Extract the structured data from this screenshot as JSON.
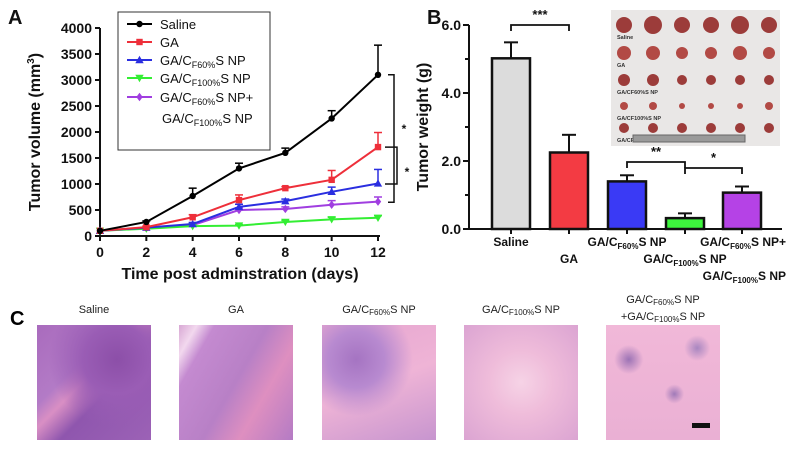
{
  "panels": {
    "a": "A",
    "b": "B",
    "c": "C"
  },
  "colors": {
    "saline": "#000000",
    "ga": "#ee2f3a",
    "f60": "#2a2ee0",
    "f100": "#33ee33",
    "combo": "#a03ee0",
    "saline_bar": "#dcdcdc",
    "ga_bar": "#f33b43",
    "f60_bar": "#3a3af5",
    "f100_bar": "#3df53d",
    "combo_bar": "#b542e6"
  },
  "chart_data": [
    {
      "type": "line",
      "title": "",
      "xlabel": "Time post adminstration (days)",
      "ylabel_main": "Tumor volume (mm",
      "ylabel_sup": "3",
      "ylabel_close": ")",
      "x": [
        0,
        2,
        4,
        6,
        8,
        10,
        12
      ],
      "xlim": [
        0,
        12
      ],
      "ylim": [
        0,
        4000
      ],
      "xticks": [
        "0",
        "2",
        "4",
        "6",
        "8",
        "10",
        "12"
      ],
      "yticks": [
        "0",
        "500",
        "1000",
        "1500",
        "2000",
        "2500",
        "3000",
        "3500",
        "4000"
      ],
      "legend_position": "top-left",
      "series": [
        {
          "name": "Saline",
          "label": {
            "base": "Saline",
            "sub": "",
            "tail": ""
          },
          "color_key": "saline",
          "marker": "circle",
          "values": [
            100,
            270,
            770,
            1300,
            1600,
            2260,
            3100
          ],
          "errors": [
            0,
            20,
            150,
            100,
            90,
            150,
            570
          ]
        },
        {
          "name": "GA",
          "label": {
            "base": "GA",
            "sub": "",
            "tail": ""
          },
          "color_key": "ga",
          "marker": "square",
          "values": [
            100,
            170,
            360,
            690,
            920,
            1080,
            1710
          ],
          "errors": [
            0,
            20,
            50,
            100,
            30,
            180,
            280
          ]
        },
        {
          "name": "GA/CF60%S NP",
          "label": {
            "base": "GA/C",
            "sub": "F60%",
            "tail": "S NP"
          },
          "color_key": "f60",
          "marker": "triangle-up",
          "values": [
            100,
            160,
            230,
            560,
            670,
            850,
            1010
          ],
          "errors": [
            0,
            15,
            30,
            50,
            40,
            90,
            270
          ]
        },
        {
          "name": "GA/CF100%S NP",
          "label": {
            "base": "GA/C",
            "sub": "F100%",
            "tail": "S NP"
          },
          "color_key": "f100",
          "marker": "triangle-down",
          "values": [
            100,
            140,
            190,
            200,
            270,
            320,
            350
          ],
          "errors": [
            0,
            10,
            20,
            20,
            30,
            40,
            40
          ]
        },
        {
          "name": "GA/CF60%S NP+GA/CF100%S NP",
          "label": {
            "base": "GA/C",
            "sub": "F60%",
            "tail": "S NP+",
            "base2": "GA/C",
            "sub2": "F100%",
            "tail2": "S NP"
          },
          "color_key": "combo",
          "marker": "diamond",
          "values": [
            100,
            150,
            210,
            500,
            520,
            600,
            660
          ],
          "errors": [
            0,
            10,
            20,
            40,
            40,
            80,
            90
          ]
        }
      ],
      "significance": [
        "*",
        "*"
      ]
    },
    {
      "type": "bar",
      "ylabel": "Tumor weight (g)",
      "ylim": [
        0,
        6
      ],
      "yticks": [
        "0.0",
        "2.0",
        "4.0",
        "6.0"
      ],
      "categories": [
        {
          "base": "Saline",
          "sub": "",
          "tail": ""
        },
        {
          "base": "GA",
          "sub": "",
          "tail": ""
        },
        {
          "base": "GA/C",
          "sub": "F60%",
          "tail": "S NP"
        },
        {
          "base": "GA/C",
          "sub": "F100%",
          "tail": "S NP"
        },
        {
          "base": "GA/C",
          "sub": "F60%",
          "tail": "S NP+",
          "base2": "GA/C",
          "sub2": "F100%",
          "tail2": "S NP"
        }
      ],
      "values": [
        5.02,
        2.25,
        1.4,
        0.32,
        1.07
      ],
      "errors": [
        0.47,
        0.52,
        0.18,
        0.14,
        0.18
      ],
      "bar_color_keys": [
        "saline_bar",
        "ga_bar",
        "f60_bar",
        "f100_bar",
        "combo_bar"
      ],
      "significance": [
        {
          "from": 0,
          "to": 1,
          "label": "***"
        },
        {
          "from": 2,
          "to": 3,
          "label": "**"
        },
        {
          "from": 3,
          "to": 4,
          "label": "*"
        }
      ]
    }
  ],
  "inset_photo": {
    "labels": [
      "Saline",
      "GA",
      "GA/CF60%S NP",
      "GA/CF100%S NP",
      "GA/CF60%S NP + GA/CF100%S NP"
    ]
  },
  "histology": [
    {
      "base": "Saline",
      "sub": "",
      "tail": ""
    },
    {
      "base": "GA",
      "sub": "",
      "tail": ""
    },
    {
      "base": "GA/C",
      "sub": "F60%",
      "tail": "S NP"
    },
    {
      "base": "GA/C",
      "sub": "F100%",
      "tail": "S NP"
    },
    {
      "base": "GA/C",
      "sub": "F60%",
      "tail": "S NP",
      "base2": "+GA/C",
      "sub2": "F100%",
      "tail2": "S NP"
    }
  ]
}
